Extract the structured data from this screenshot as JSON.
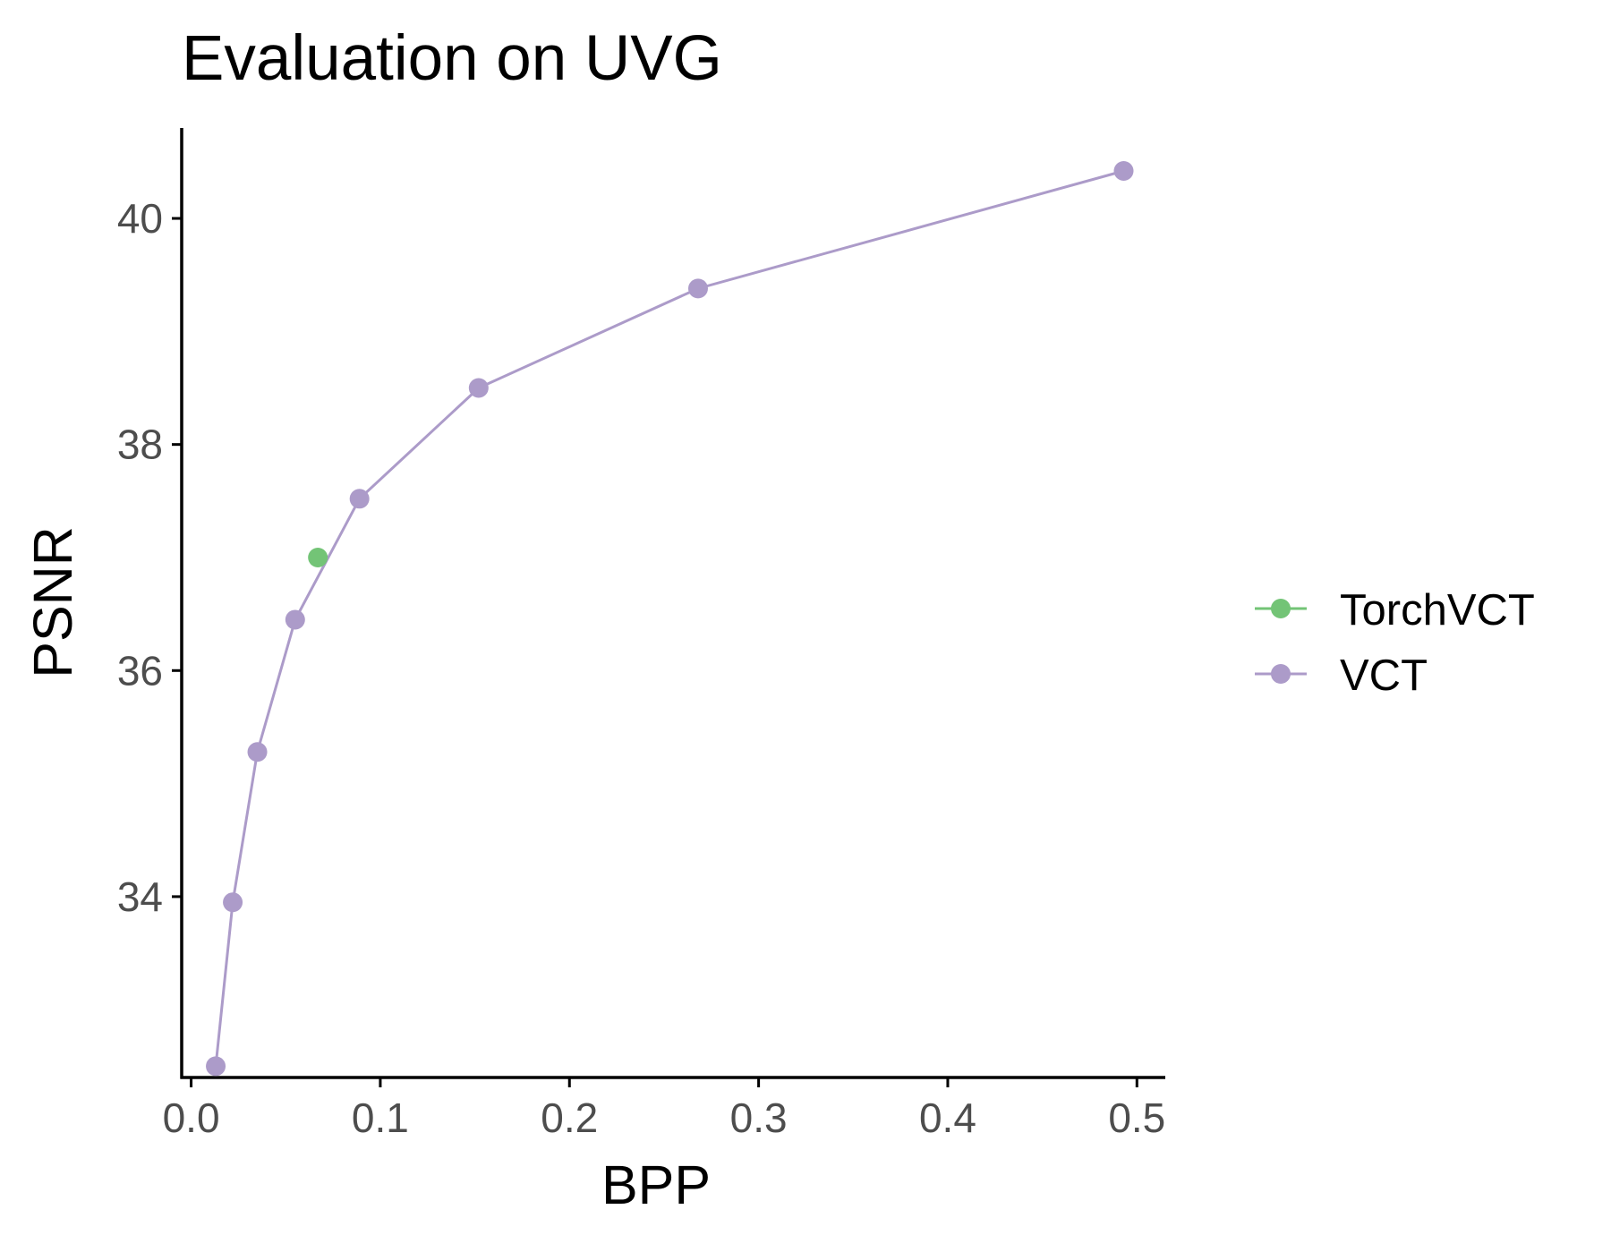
{
  "chart_data": {
    "type": "line",
    "title": "Evaluation on UVG",
    "xlabel": "BPP",
    "ylabel": "PSNR",
    "xlim": [
      -0.005,
      0.515
    ],
    "ylim": [
      32.4,
      40.8
    ],
    "x_ticks": [
      0.0,
      0.1,
      0.2,
      0.3,
      0.4,
      0.5
    ],
    "x_tick_labels": [
      "0.0",
      "0.1",
      "0.2",
      "0.3",
      "0.4",
      "0.5"
    ],
    "y_ticks": [
      34,
      36,
      38,
      40
    ],
    "y_tick_labels": [
      "34",
      "36",
      "38",
      "40"
    ],
    "grid": false,
    "legend_position": "right",
    "series": [
      {
        "name": "TorchVCT",
        "color": "#73c476",
        "points": [
          {
            "x": 0.067,
            "y": 37.0
          }
        ]
      },
      {
        "name": "VCT",
        "color": "#ac9bc9",
        "points": [
          {
            "x": 0.013,
            "y": 32.5
          },
          {
            "x": 0.022,
            "y": 33.95
          },
          {
            "x": 0.035,
            "y": 35.28
          },
          {
            "x": 0.055,
            "y": 36.45
          },
          {
            "x": 0.089,
            "y": 37.52
          },
          {
            "x": 0.152,
            "y": 38.5
          },
          {
            "x": 0.268,
            "y": 39.38
          },
          {
            "x": 0.493,
            "y": 40.42
          }
        ]
      }
    ]
  }
}
